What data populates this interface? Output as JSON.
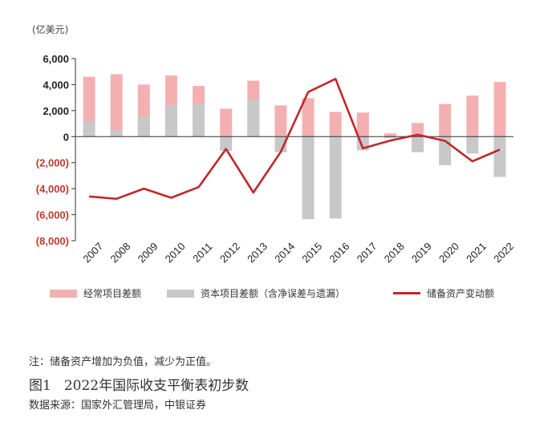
{
  "unit_label": "(亿美元)",
  "note": "注：储备资产增加为负值，减少为正值。",
  "caption_no": "图1",
  "caption_title": "2022年国际收支平衡表初步数",
  "source": "数据来源：国家外汇管理局，中银证券",
  "colors": {
    "current": "#f4b0b0",
    "capital": "#c8c8c8",
    "reserve": "#c0282c",
    "negative_tick": "#c0392b"
  },
  "chart_data": {
    "type": "bar",
    "categories": [
      "2007",
      "2008",
      "2009",
      "2010",
      "2011",
      "2012",
      "2013",
      "2014",
      "2015",
      "2016",
      "2017",
      "2018",
      "2019",
      "2020",
      "2021",
      "2022"
    ],
    "series": [
      {
        "name": "经常项目差额",
        "type": "bar",
        "values": [
          4600,
          4800,
          4000,
          4700,
          3900,
          2150,
          4300,
          2400,
          2950,
          1900,
          1850,
          250,
          1050,
          2500,
          3150,
          4200
        ]
      },
      {
        "name": "资本项目差额（含净误差与遗漏）",
        "type": "bar",
        "values": [
          1200,
          500,
          1550,
          2400,
          2550,
          -1100,
          2850,
          -1200,
          -6350,
          -6300,
          -1050,
          -100,
          -1200,
          -2200,
          -1300,
          -3100
        ]
      },
      {
        "name": "储备资产变动额",
        "type": "line",
        "values": [
          -4600,
          -4780,
          -4000,
          -4700,
          -3880,
          -950,
          -4300,
          -1180,
          3430,
          4440,
          -900,
          -300,
          150,
          -330,
          -1900,
          -1000
        ]
      }
    ],
    "ylim": [
      -8000,
      6000
    ],
    "yticks": [
      6000,
      4000,
      2000,
      0,
      -2000,
      -4000,
      -6000,
      -8000
    ],
    "ytick_labels": [
      "6,000",
      "4,000",
      "2,000",
      "0",
      "(2,000)",
      "(4,000)",
      "(6,000)",
      "(8,000)"
    ],
    "grid": false,
    "legend_position": "bottom"
  }
}
